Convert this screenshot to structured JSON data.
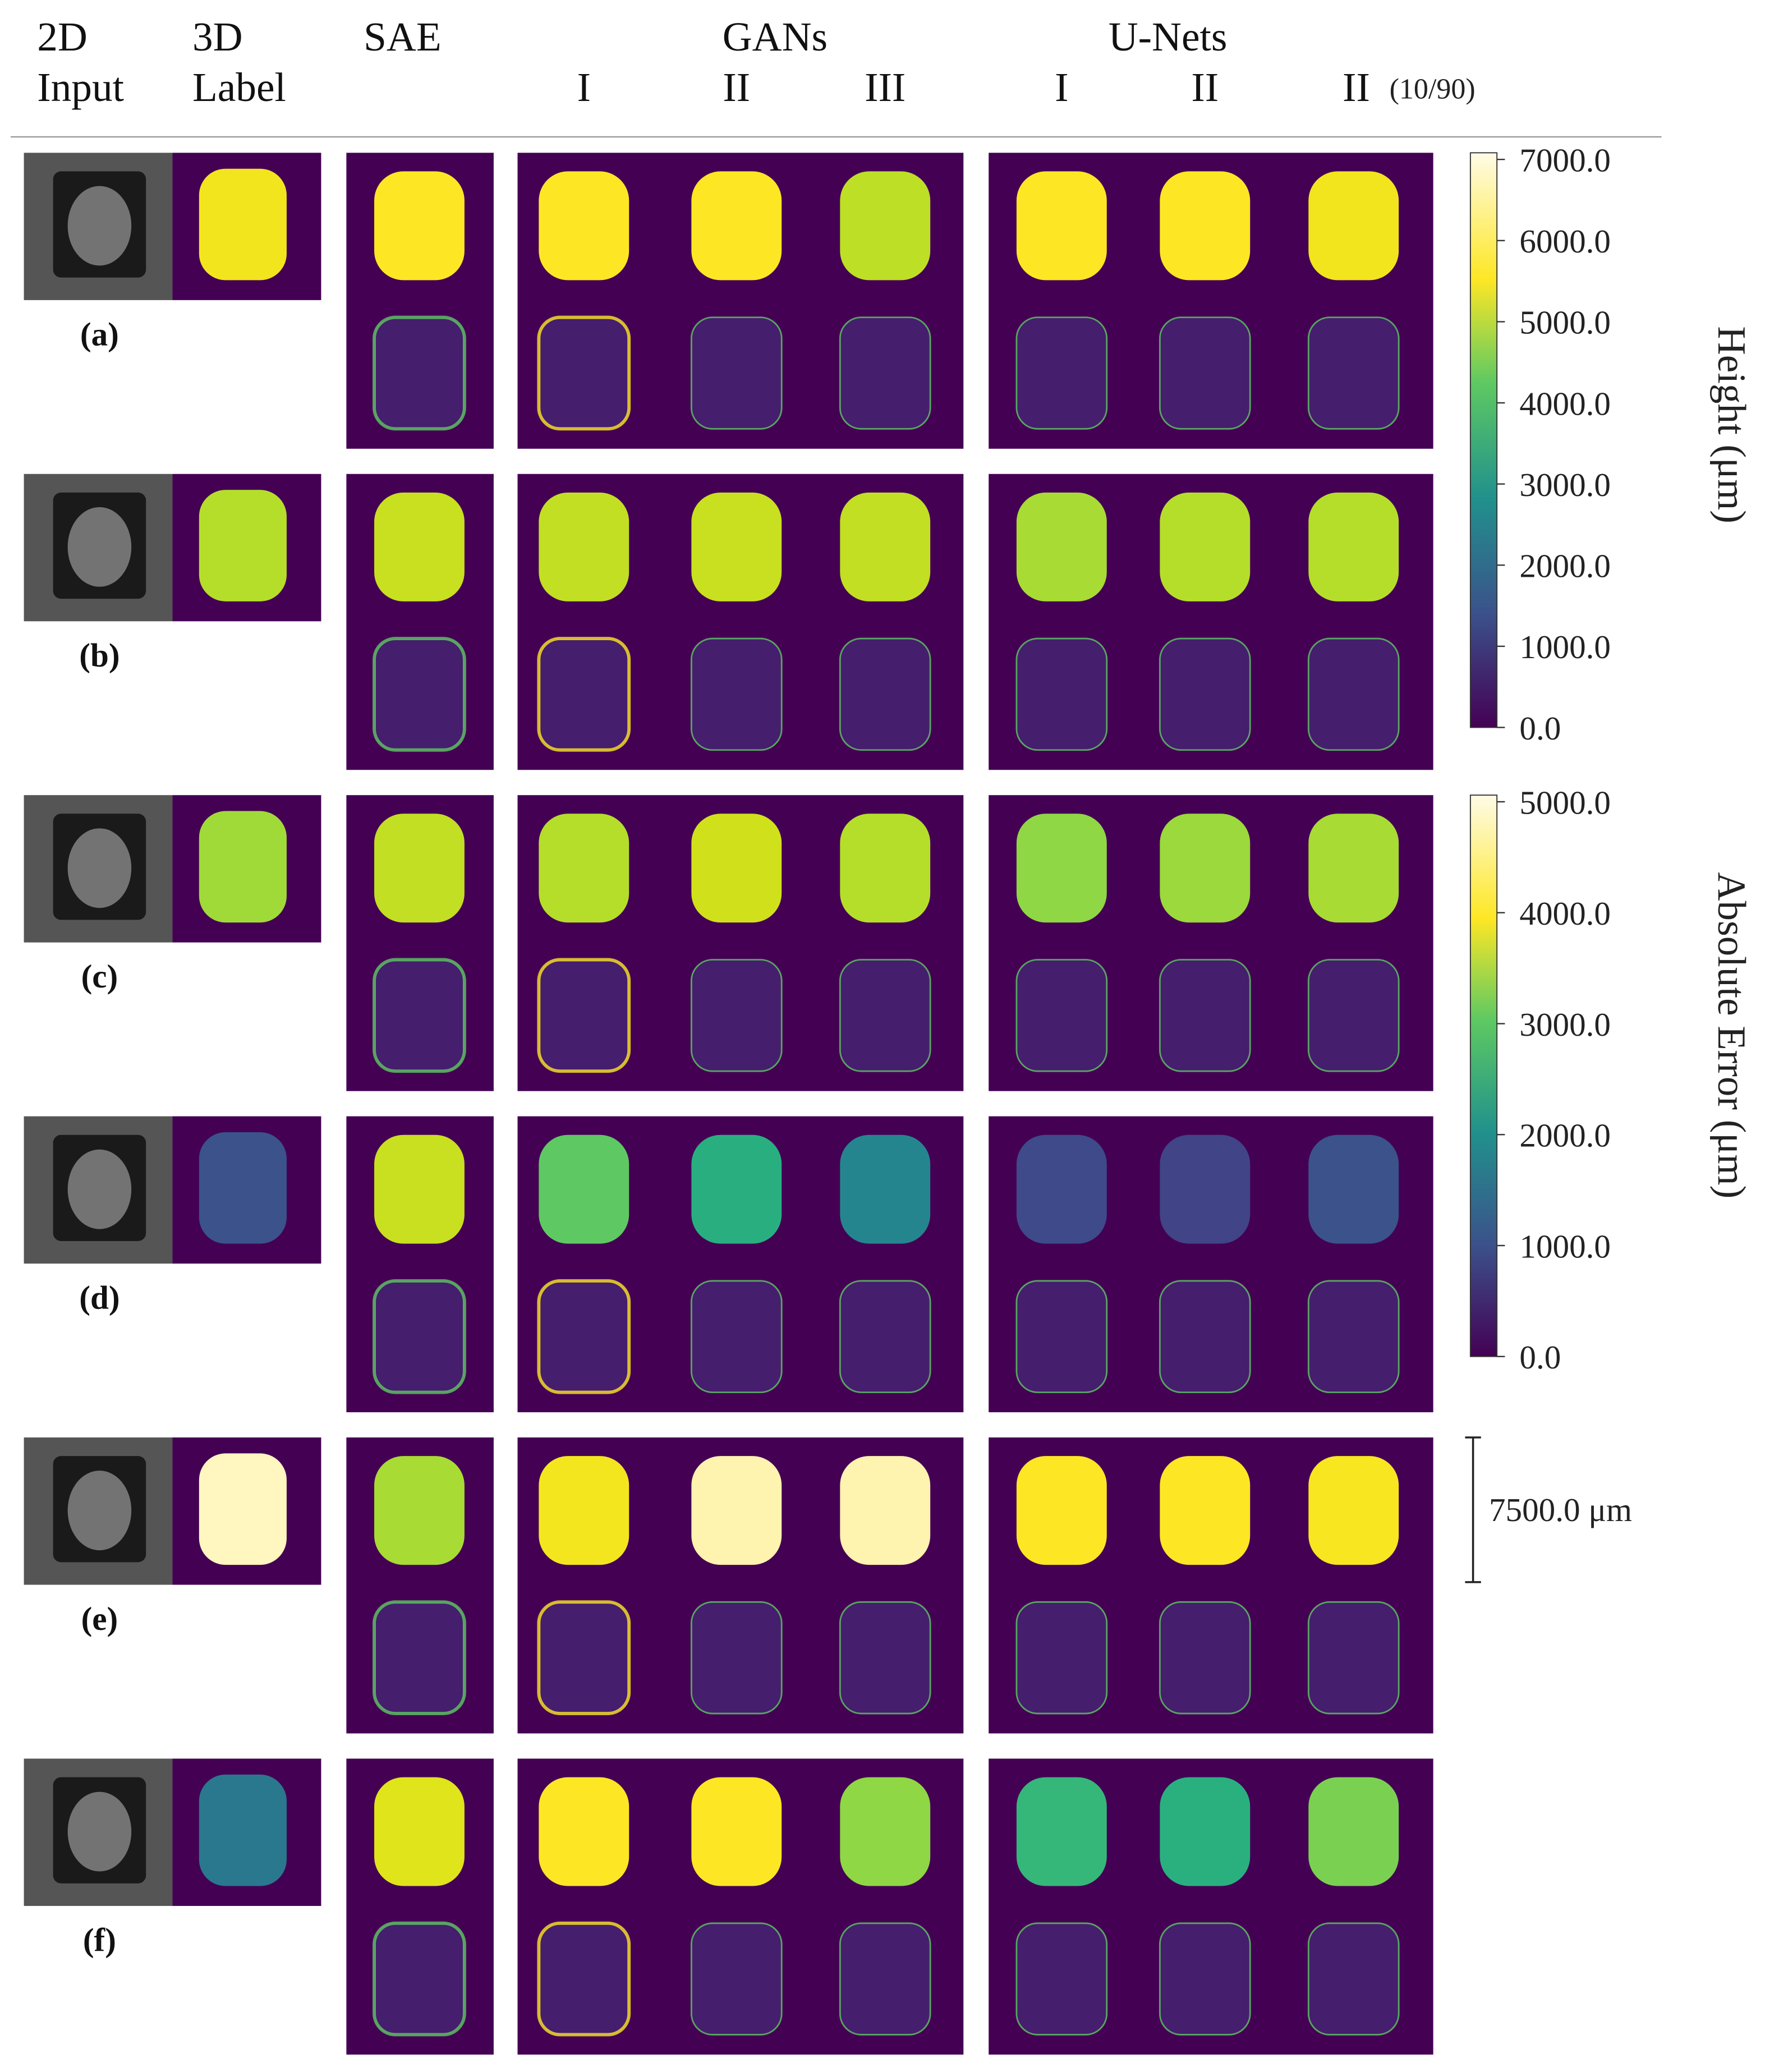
{
  "header": {
    "row1": {
      "input": "2D",
      "label": "3D",
      "sae": "SAE",
      "gans": "GANs",
      "unets": "U-Nets"
    },
    "row2": {
      "input": "Input",
      "label": "Label",
      "gan_1": "I",
      "gan_2": "II",
      "gan_3": "III",
      "unet_1": "I",
      "unet_2": "II",
      "unet_3": "II",
      "unet_3_note": "(10/90)"
    }
  },
  "rows": [
    "(a)",
    "(b)",
    "(c)",
    "(d)",
    "(e)",
    "(f)"
  ],
  "height_colorbar": {
    "label": "Height (μm)",
    "ticks": [
      "7000.0",
      "6000.0",
      "5000.0",
      "4000.0",
      "3000.0",
      "2000.0",
      "1000.0",
      "0.0"
    ]
  },
  "error_colorbar": {
    "label": "Absolute Error (μm)",
    "ticks": [
      "5000.0",
      "4000.0",
      "3000.0",
      "2000.0",
      "1000.0",
      "0.0"
    ]
  },
  "scale_bar": {
    "label": "7500.0 μm"
  }
}
